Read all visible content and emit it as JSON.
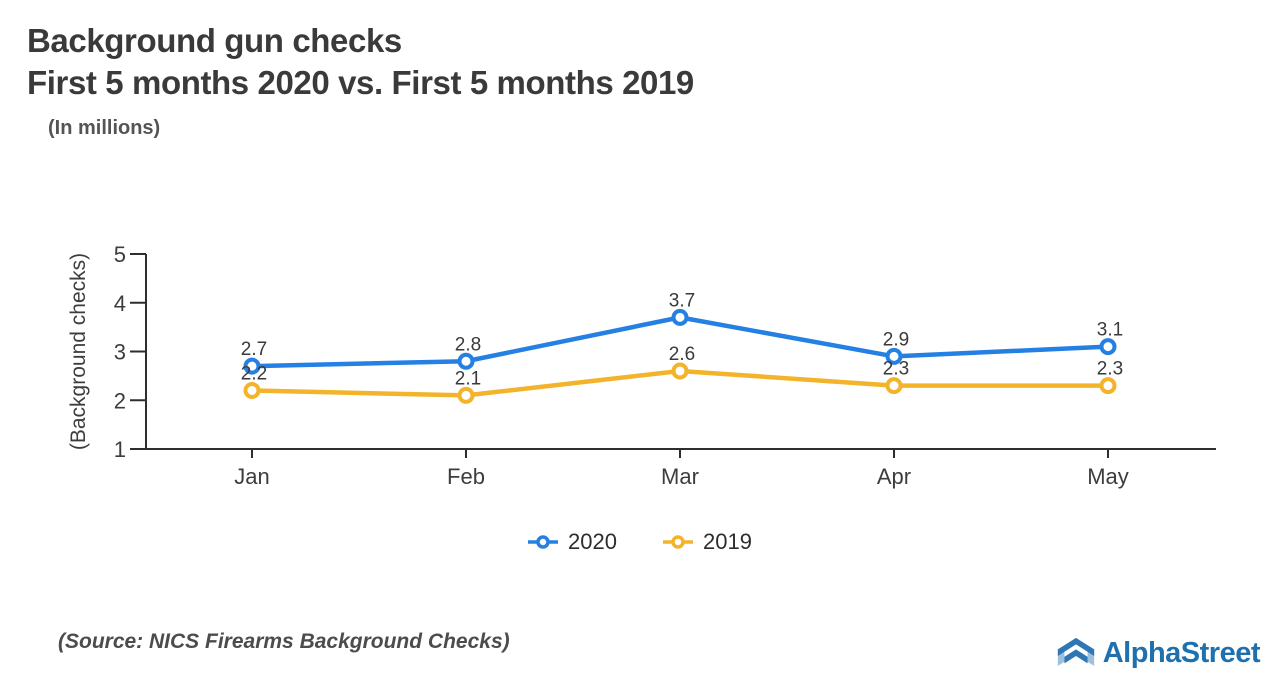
{
  "header": {
    "title_line1": "Background gun checks",
    "title_line2": "First 5 months 2020 vs. First 5 months 2019",
    "subtitle": "(In millions)"
  },
  "chart_data": {
    "type": "line",
    "title": "Background gun checks — First 5 months 2020 vs. First 5 months 2019",
    "units": "millions",
    "categories": [
      "Jan",
      "Feb",
      "Mar",
      "Apr",
      "May"
    ],
    "series": [
      {
        "name": "2020",
        "color": "#2580e4",
        "values": [
          2.7,
          2.8,
          3.7,
          2.9,
          3.1
        ]
      },
      {
        "name": "2019",
        "color": "#f3b32b",
        "values": [
          2.2,
          2.1,
          2.6,
          2.3,
          2.3
        ]
      }
    ],
    "xlabel": "",
    "ylabel": "(Background checks)",
    "yticks": [
      1,
      2,
      3,
      4,
      5
    ],
    "ylim": [
      1,
      5
    ],
    "grid": false,
    "legend_position": "bottom",
    "marker": "open-circle",
    "data_labels": true
  },
  "footer": {
    "source": "(Source: NICS Firearms Background Checks)",
    "brand": "AlphaStreet"
  },
  "icons": {
    "brand_icon": "alphastreet-chevron"
  },
  "colors": {
    "background": "#ffffff",
    "title_text": "#3a3a3a",
    "axis_text": "#3d3d3d",
    "axis_line": "#2e2e2e",
    "data_label_text": "#3a3a3a",
    "series_2020": "#2580e4",
    "series_2019": "#f3b32b",
    "source_text": "#4c4c4c",
    "brand_text_blue": "#1e70ae",
    "brand_icon_mid_blue": "#2e77b4",
    "brand_icon_light_blue": "#9cc0dd"
  }
}
